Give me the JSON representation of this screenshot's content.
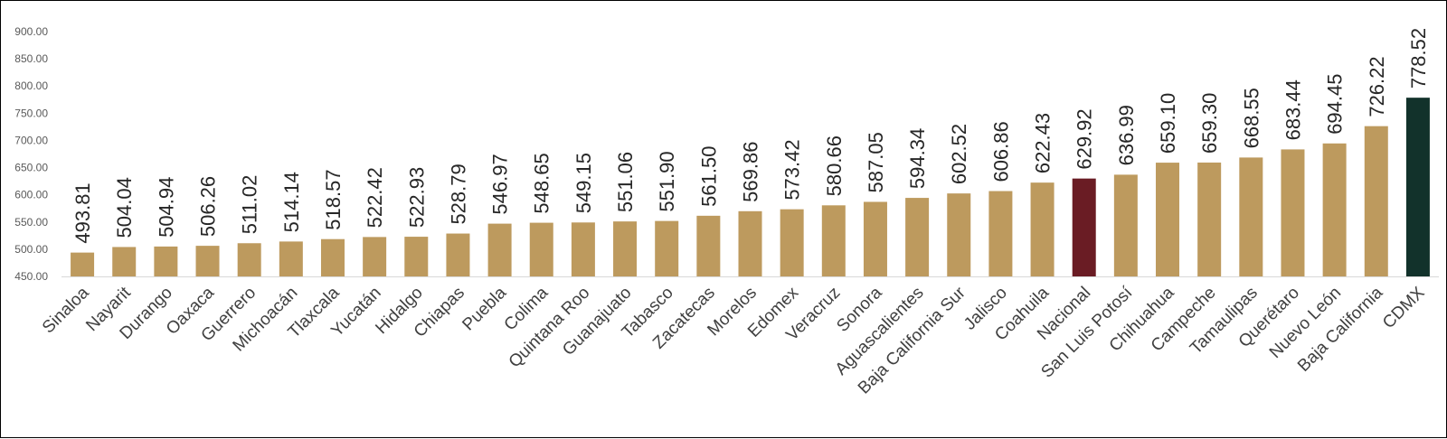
{
  "chart_data": {
    "type": "bar",
    "title": "",
    "xlabel": "",
    "ylabel": "",
    "ylim": [
      450,
      900
    ],
    "yticks": [
      "450.00",
      "500.00",
      "550.00",
      "600.00",
      "650.00",
      "700.00",
      "750.00",
      "800.00",
      "850.00",
      "900.00"
    ],
    "grid": false,
    "legend": "none",
    "categories": [
      "Sinaloa",
      "Nayarit",
      "Durango",
      "Oaxaca",
      "Guerrero",
      "Michoacán",
      "Tlaxcala",
      "Yucatán",
      "Hidalgo",
      "Chiapas",
      "Puebla",
      "Colima",
      "Quintana Roo",
      "Guanajuato",
      "Tabasco",
      "Zacatecas",
      "Morelos",
      "Edomex",
      "Veracruz",
      "Sonora",
      "Aguascalientes",
      "Baja California Sur",
      "Jalisco",
      "Coahuila",
      "Nacional",
      "San Luis Potosí",
      "Chihuahua",
      "Campeche",
      "Tamaulipas",
      "Querétaro",
      "Nuevo León",
      "Baja California",
      "CDMX"
    ],
    "values": [
      493.81,
      504.04,
      504.94,
      506.26,
      511.02,
      514.14,
      518.57,
      522.42,
      522.93,
      528.79,
      546.97,
      548.65,
      549.15,
      551.06,
      551.9,
      561.5,
      569.86,
      573.42,
      580.66,
      587.05,
      594.34,
      602.52,
      606.86,
      622.43,
      629.92,
      636.99,
      659.1,
      659.3,
      668.55,
      683.44,
      694.45,
      726.22,
      778.52
    ],
    "data_labels": [
      "493.81",
      "504.04",
      "504.94",
      "506.26",
      "511.02",
      "514.14",
      "518.57",
      "522.42",
      "522.93",
      "528.79",
      "546.97",
      "548.65",
      "549.15",
      "551.06",
      "551.90",
      "561.50",
      "569.86",
      "573.42",
      "580.66",
      "587.05",
      "594.34",
      "602.52",
      "606.86",
      "622.43",
      "629.92",
      "636.99",
      "659.10",
      "659.30",
      "668.55",
      "683.44",
      "694.45",
      "726.22",
      "778.52"
    ],
    "colors": {
      "default": "#BD9A5E",
      "Nacional": "#6A1C24",
      "CDMX": "#12322B",
      "axis": "#D9D9D9"
    }
  }
}
